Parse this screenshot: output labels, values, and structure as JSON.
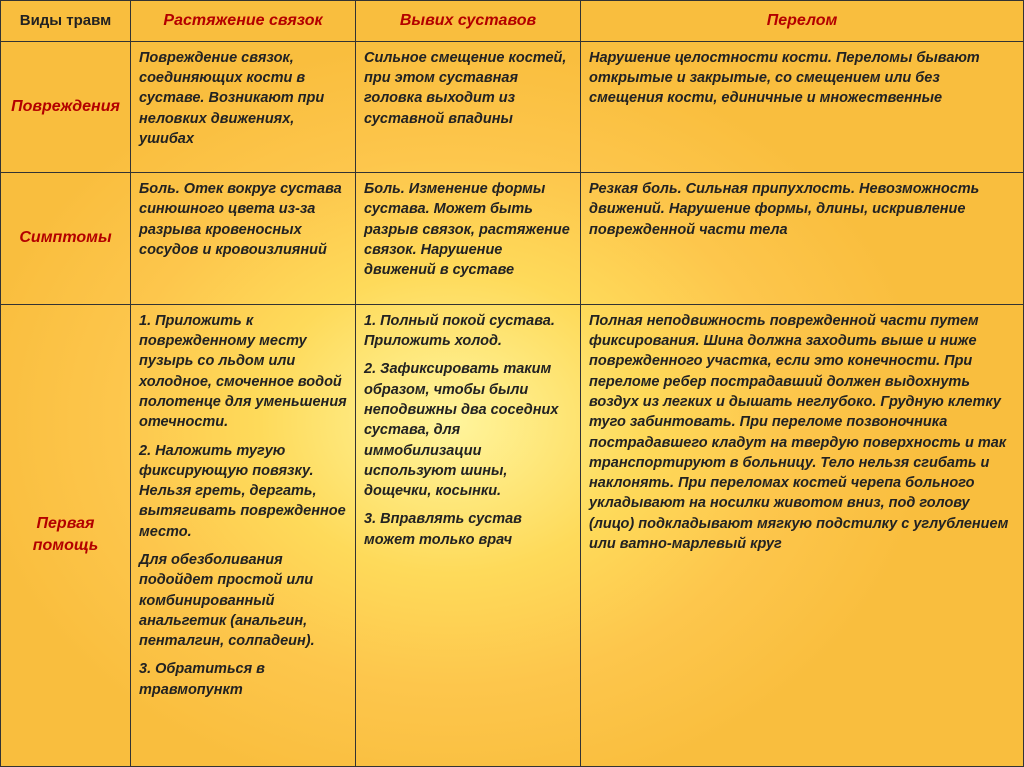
{
  "columns": {
    "c0": "Виды травм",
    "c1": "Растяжение связок",
    "c2": "Вывих суставов",
    "c3": "Перелом"
  },
  "rows": {
    "r1": {
      "label": "Повреждения",
      "c1": "Повреждение связок, соединяющих кости в суставе. Возникают при неловких движениях, ушибах",
      "c2": "Сильное смещение костей, при этом суставная головка выходит из суставной впадины",
      "c3": "Нарушение целостности кости. Переломы бывают открытые и закрытые, со смещением или без смещения кости, единичные и множественные"
    },
    "r2": {
      "label": "Симптомы",
      "c1": "Боль. Отек вокруг сустава синюшного цвета из-за разрыва кровеносных сосудов и кровоизлияний",
      "c2": "Боль. Изменение формы сустава. Может быть разрыв связок, растяжение связок. Нарушение движений в суставе",
      "c3": "Резкая боль. Сильная припухлость. Невозможность движений. Нарушение формы, длины, искривление поврежденной части тела"
    },
    "r3": {
      "label": "Первая помощь",
      "c1p1": "1. Приложить к поврежденному месту пузырь со льдом или холодное, смоченное водой полотенце для уменьшения отечности.",
      "c1p2": "2. Наложить тугую фиксирующую повязку. Нельзя греть, дергать, вытягивать поврежденное место.",
      "c1p3": "Для обезболивания подойдет простой или комбинированный анальгетик (анальгин, пенталгин, солпадеин).",
      "c1p4": "3. Обратиться в травмопункт",
      "c2p1": "1. Полный покой сустава. Приложить холод.",
      "c2p2": "2. Зафиксировать таким образом, чтобы были неподвижны два соседних сустава, для иммобилизации используют шины, дощечки, косынки.",
      "c2p3": "3. Вправлять сустав может только врач",
      "c3": "Полная неподвижность поврежденной части путем фиксирования. Шина должна заходить выше и ниже поврежденного участка, если это конечности. При переломе ребер пострадавший должен выдохнуть воздух из легких и дышать неглубоко. Грудную клетку туго забинтовать. При переломе позвоночника пострадавшего кладут на твердую поверхность и так транспортируют в больницу. Тело нельзя сгибать и наклонять. При переломах костей черепа больного укладывают на носилки животом вниз, под голову (лицо) подкладывают мягкую подстилку с углублением или ватно-марлевый круг"
    }
  },
  "widths": {
    "c0": "130px",
    "c1": "225px",
    "c2": "225px",
    "c3": "auto"
  }
}
